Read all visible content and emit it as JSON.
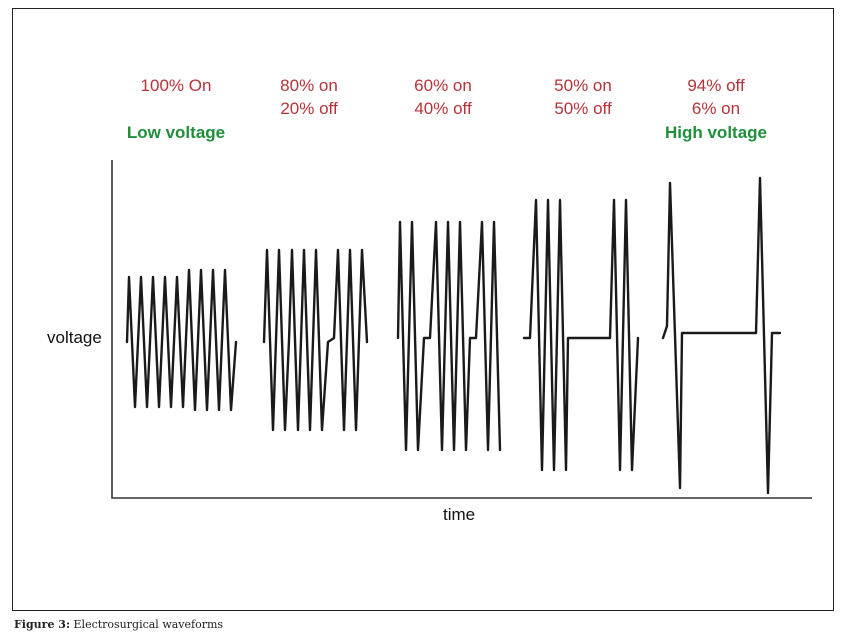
{
  "labels": [
    {
      "line1": "100% On",
      "line2": ""
    },
    {
      "line1": "80% on",
      "line2": "20% off"
    },
    {
      "line1": "60% on",
      "line2": "40% off"
    },
    {
      "line1": "50% on",
      "line2": "50% off"
    },
    {
      "line1": "94% off",
      "line2": "6% on"
    }
  ],
  "low_voltage": "Low voltage",
  "high_voltage": "High voltage",
  "axis": {
    "y_label": "voltage",
    "x_label": "time"
  },
  "caption": {
    "label": "Figure 3:",
    "text": "Electrosurgical waveforms"
  },
  "waveforms": [
    {
      "on_percent": 100,
      "off_percent": 0,
      "relative_amplitude": 0.4
    },
    {
      "on_percent": 80,
      "off_percent": 20,
      "relative_amplitude": 0.55
    },
    {
      "on_percent": 60,
      "off_percent": 40,
      "relative_amplitude": 0.7
    },
    {
      "on_percent": 50,
      "off_percent": 50,
      "relative_amplitude": 0.85
    },
    {
      "on_percent": 6,
      "off_percent": 94,
      "relative_amplitude": 1.0
    }
  ],
  "colors": {
    "duty_label": "#b5343a",
    "voltage_label": "#1f8f3a",
    "wave": "#1a1a1a"
  }
}
